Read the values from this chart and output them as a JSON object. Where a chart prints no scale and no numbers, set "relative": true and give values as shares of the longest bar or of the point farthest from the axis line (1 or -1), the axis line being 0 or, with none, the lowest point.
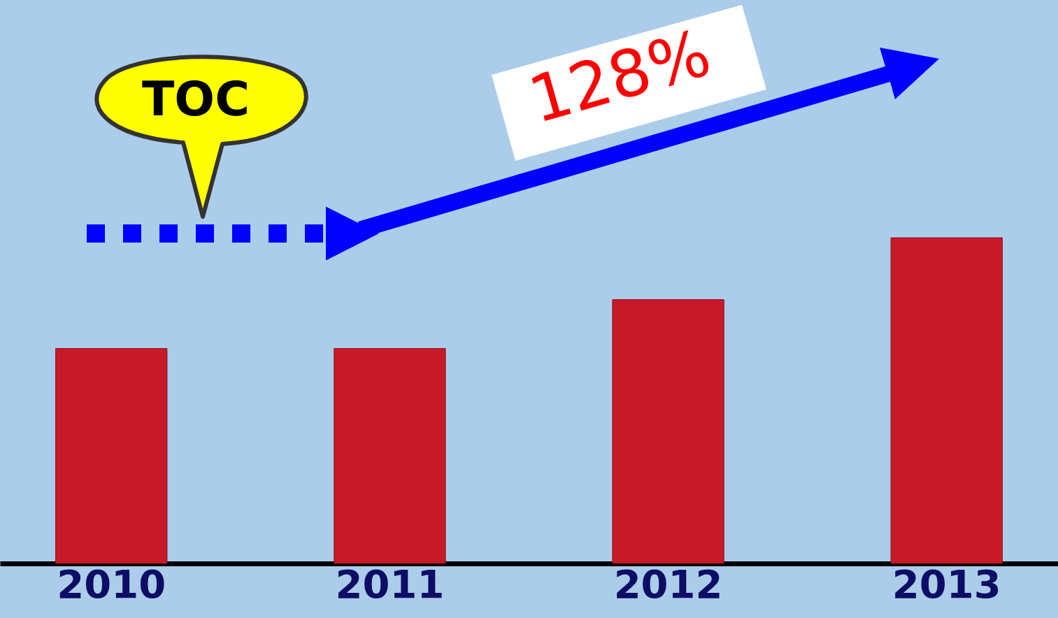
{
  "chart_data": {
    "type": "bar",
    "relative": true,
    "categories": [
      "2010",
      "2011",
      "2012",
      "2013"
    ],
    "values": [
      0.66,
      0.66,
      0.81,
      1
    ],
    "color": "#c8192a",
    "annotations": [
      "TOC",
      "128%"
    ],
    "grid": false
  }
}
